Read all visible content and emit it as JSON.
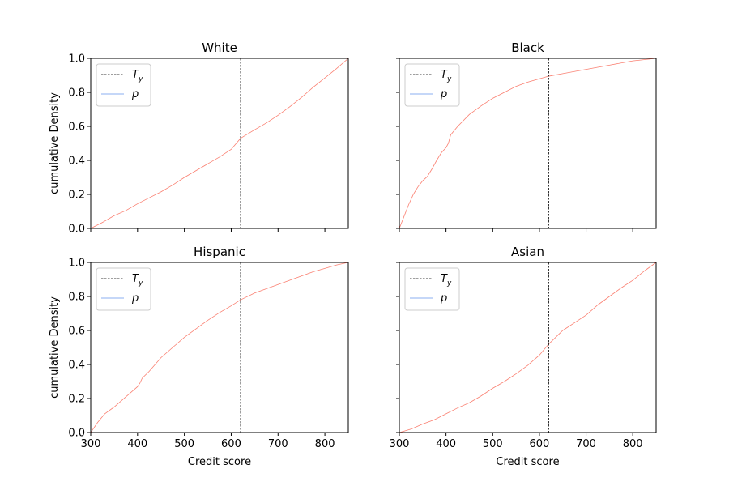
{
  "figure": {
    "colors": {
      "threshold": "#000000",
      "curve": "#fa8072",
      "legend_p": "#6495ed",
      "legend_border": "#cccccc"
    }
  },
  "chart_data": [
    {
      "type": "line",
      "title": "White",
      "xlabel": "",
      "ylabel": "cumulative Density",
      "xlim": [
        300,
        850
      ],
      "ylim": [
        0,
        1
      ],
      "xticks": [
        300,
        400,
        500,
        600,
        700,
        800
      ],
      "yticks": [
        0.0,
        0.2,
        0.4,
        0.6,
        0.8,
        1.0
      ],
      "xtick_labels_shown": false,
      "ytick_labels_shown": true,
      "threshold": 620,
      "legend": {
        "position": "upper-left",
        "entries": [
          "T_y",
          "p"
        ]
      },
      "series": [
        {
          "name": "p",
          "x": [
            300,
            325,
            350,
            375,
            400,
            425,
            450,
            475,
            500,
            525,
            550,
            575,
            600,
            620,
            650,
            675,
            700,
            725,
            750,
            775,
            800,
            825,
            850
          ],
          "y": [
            0.0,
            0.035,
            0.075,
            0.105,
            0.145,
            0.18,
            0.215,
            0.255,
            0.3,
            0.34,
            0.38,
            0.42,
            0.465,
            0.53,
            0.58,
            0.62,
            0.665,
            0.715,
            0.77,
            0.83,
            0.885,
            0.94,
            1.0
          ]
        }
      ]
    },
    {
      "type": "line",
      "title": "Black",
      "xlabel": "",
      "ylabel": "",
      "xlim": [
        300,
        850
      ],
      "ylim": [
        0,
        1
      ],
      "xticks": [
        300,
        400,
        500,
        600,
        700,
        800
      ],
      "yticks": [
        0.0,
        0.2,
        0.4,
        0.6,
        0.8,
        1.0
      ],
      "xtick_labels_shown": false,
      "ytick_labels_shown": false,
      "threshold": 620,
      "legend": {
        "position": "upper-left",
        "entries": [
          "T_y",
          "p"
        ]
      },
      "series": [
        {
          "name": "p",
          "x": [
            300,
            310,
            320,
            330,
            340,
            350,
            360,
            370,
            380,
            390,
            400,
            405,
            410,
            425,
            450,
            475,
            500,
            525,
            550,
            575,
            600,
            620,
            650,
            700,
            750,
            800,
            850
          ],
          "y": [
            0.0,
            0.07,
            0.14,
            0.2,
            0.245,
            0.28,
            0.305,
            0.35,
            0.4,
            0.445,
            0.475,
            0.5,
            0.55,
            0.6,
            0.67,
            0.72,
            0.765,
            0.8,
            0.835,
            0.86,
            0.88,
            0.895,
            0.91,
            0.935,
            0.96,
            0.985,
            1.0
          ]
        }
      ]
    },
    {
      "type": "line",
      "title": "Hispanic",
      "xlabel": "Credit score",
      "ylabel": "cumulative Density",
      "xlim": [
        300,
        850
      ],
      "ylim": [
        0,
        1
      ],
      "xticks": [
        300,
        400,
        500,
        600,
        700,
        800
      ],
      "yticks": [
        0.0,
        0.2,
        0.4,
        0.6,
        0.8,
        1.0
      ],
      "xtick_labels_shown": true,
      "ytick_labels_shown": true,
      "threshold": 620,
      "legend": {
        "position": "upper-left",
        "entries": [
          "T_y",
          "p"
        ]
      },
      "series": [
        {
          "name": "p",
          "x": [
            300,
            315,
            330,
            350,
            375,
            400,
            405,
            410,
            425,
            450,
            475,
            500,
            525,
            550,
            575,
            600,
            620,
            650,
            675,
            700,
            725,
            750,
            775,
            800,
            825,
            850
          ],
          "y": [
            0.0,
            0.06,
            0.11,
            0.15,
            0.21,
            0.27,
            0.29,
            0.32,
            0.36,
            0.44,
            0.5,
            0.56,
            0.61,
            0.66,
            0.705,
            0.745,
            0.78,
            0.82,
            0.845,
            0.87,
            0.895,
            0.92,
            0.945,
            0.965,
            0.985,
            1.0
          ]
        }
      ]
    },
    {
      "type": "line",
      "title": "Asian",
      "xlabel": "Credit score",
      "ylabel": "",
      "xlim": [
        300,
        850
      ],
      "ylim": [
        0,
        1
      ],
      "xticks": [
        300,
        400,
        500,
        600,
        700,
        800
      ],
      "yticks": [
        0.0,
        0.2,
        0.4,
        0.6,
        0.8,
        1.0
      ],
      "xtick_labels_shown": true,
      "ytick_labels_shown": false,
      "threshold": 620,
      "legend": {
        "position": "upper-left",
        "entries": [
          "T_y",
          "p"
        ]
      },
      "series": [
        {
          "name": "p",
          "x": [
            300,
            325,
            350,
            375,
            400,
            425,
            450,
            475,
            500,
            525,
            550,
            575,
            600,
            620,
            650,
            675,
            700,
            725,
            750,
            775,
            800,
            825,
            850
          ],
          "y": [
            0.0,
            0.02,
            0.05,
            0.075,
            0.11,
            0.145,
            0.175,
            0.215,
            0.26,
            0.3,
            0.345,
            0.395,
            0.455,
            0.52,
            0.6,
            0.645,
            0.69,
            0.75,
            0.8,
            0.85,
            0.895,
            0.95,
            1.0
          ]
        }
      ]
    }
  ]
}
